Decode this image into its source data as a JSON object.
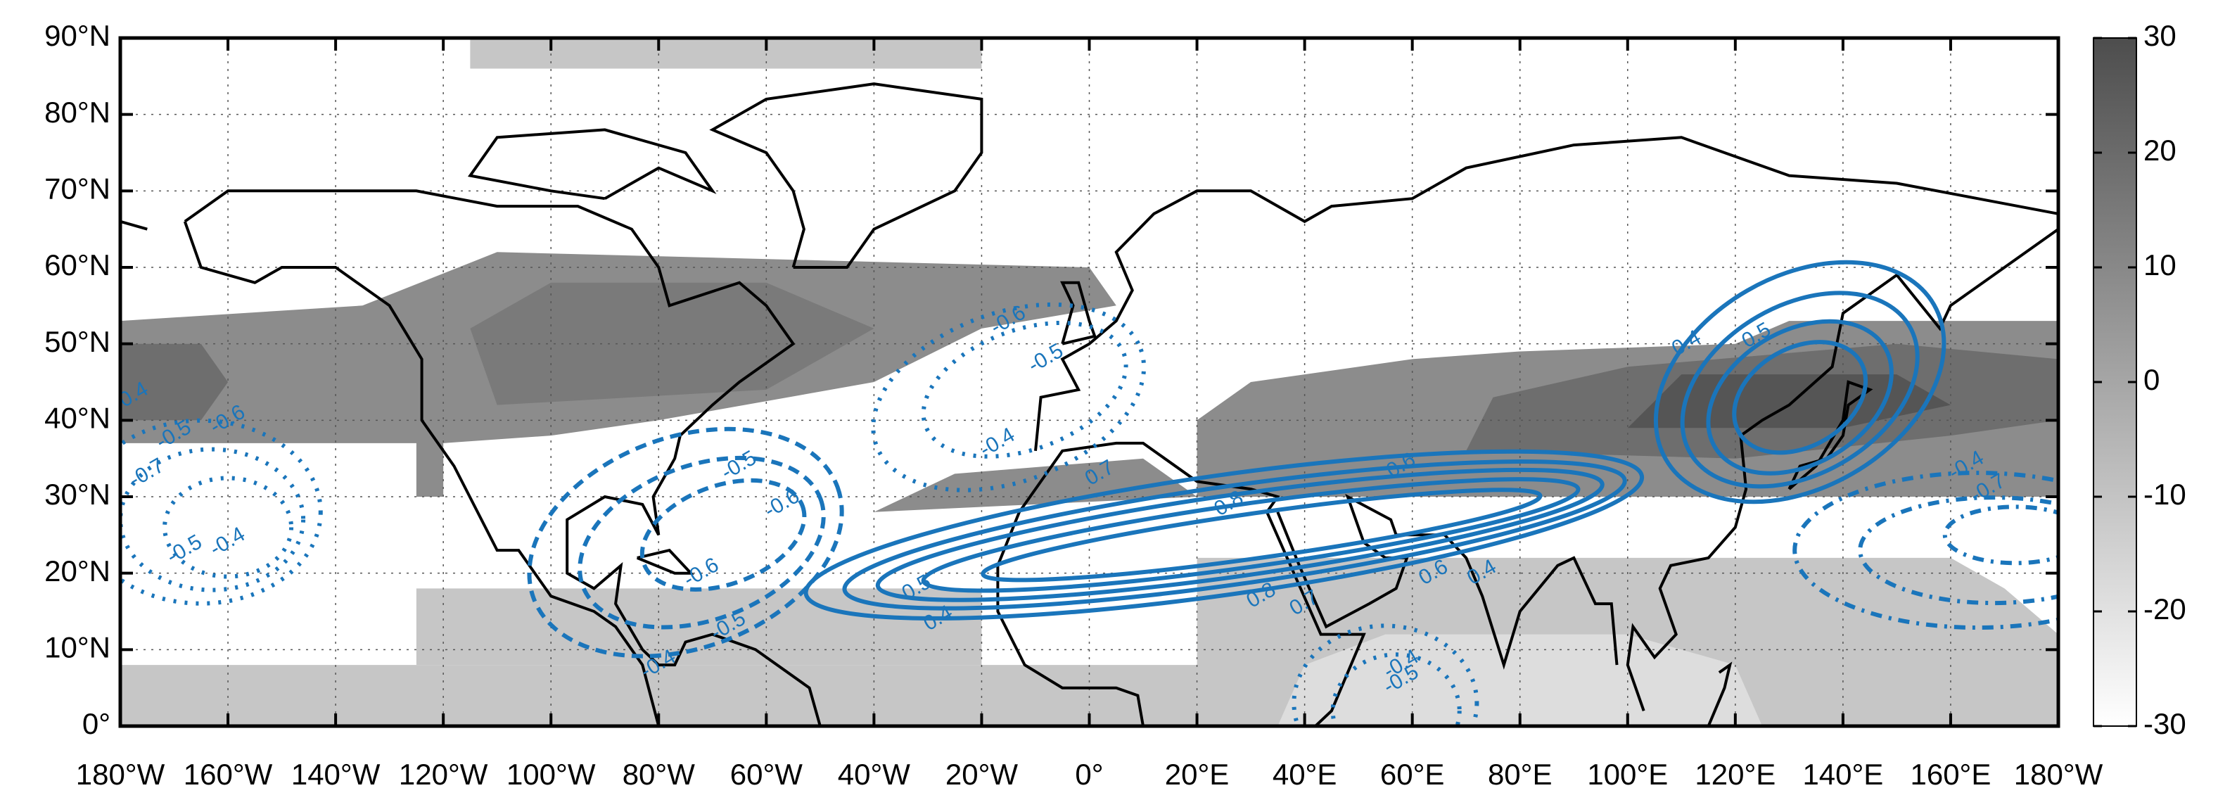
{
  "chart_data": {
    "type": "map",
    "xlim": [
      -180,
      180
    ],
    "xticks": [
      {
        "value": -180,
        "label": "180°W"
      },
      {
        "value": -160,
        "label": "160°W"
      },
      {
        "value": -140,
        "label": "140°W"
      },
      {
        "value": -120,
        "label": "120°W"
      },
      {
        "value": -100,
        "label": "100°W"
      },
      {
        "value": -80,
        "label": "80°W"
      },
      {
        "value": -60,
        "label": "60°W"
      },
      {
        "value": -40,
        "label": "40°W"
      },
      {
        "value": -20,
        "label": "20°W"
      },
      {
        "value": 0,
        "label": "0°"
      },
      {
        "value": 20,
        "label": "20°E"
      },
      {
        "value": 40,
        "label": "40°E"
      },
      {
        "value": 60,
        "label": "60°E"
      },
      {
        "value": 80,
        "label": "80°E"
      },
      {
        "value": 100,
        "label": "100°E"
      },
      {
        "value": 120,
        "label": "120°E"
      },
      {
        "value": 140,
        "label": "140°E"
      },
      {
        "value": 160,
        "label": "160°E"
      },
      {
        "value": 180,
        "label": "180°W"
      }
    ],
    "ylim": [
      0,
      90
    ],
    "yticks": [
      {
        "value": 0,
        "label": "0°"
      },
      {
        "value": 10,
        "label": "10°N"
      },
      {
        "value": 20,
        "label": "20°N"
      },
      {
        "value": 30,
        "label": "30°N"
      },
      {
        "value": 40,
        "label": "40°N"
      },
      {
        "value": 50,
        "label": "50°N"
      },
      {
        "value": 60,
        "label": "60°N"
      },
      {
        "value": 70,
        "label": "70°N"
      },
      {
        "value": 80,
        "label": "80°N"
      },
      {
        "value": 90,
        "label": "90°N"
      }
    ],
    "grid": true,
    "colorbar": {
      "lim": [
        -30,
        30
      ],
      "ticks": [
        -30,
        -20,
        -10,
        0,
        10,
        20,
        30
      ]
    },
    "contour_color": "#1a75bb",
    "contour_labels": [
      -0.4,
      -0.6,
      -0.7,
      -0.5,
      -0.4,
      -0.6,
      -0.5,
      -0.4,
      -0.5,
      -0.6,
      -0.4,
      -0.5,
      -0.6,
      0.7,
      0.8,
      0.6,
      0.5,
      0.4,
      0.8,
      0.7,
      0.6,
      0.4,
      0.5,
      0.4,
      -0.4,
      -0.5,
      -0.7,
      -0.4,
      -0.5
    ]
  }
}
